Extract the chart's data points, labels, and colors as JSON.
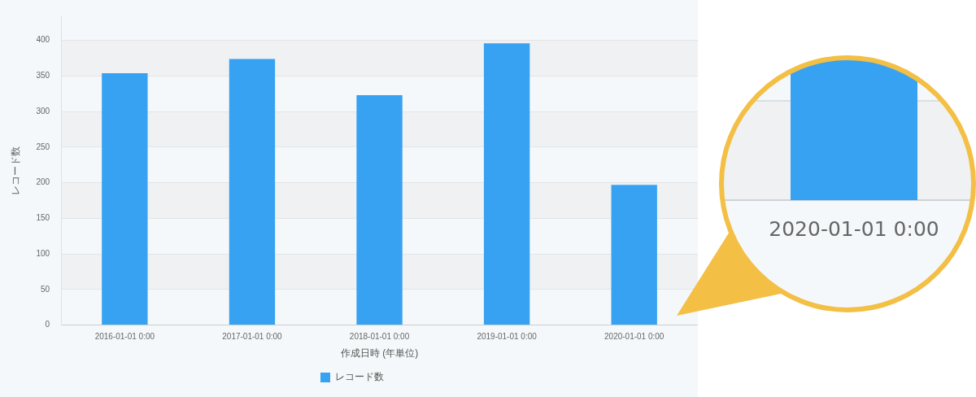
{
  "chart_data": {
    "type": "bar",
    "categories": [
      "2016-01-01 0:00",
      "2017-01-01 0:00",
      "2018-01-01 0:00",
      "2019-01-01 0:00",
      "2020-01-01 0:00"
    ],
    "series": [
      {
        "name": "レコード数",
        "color": "#38a2f2",
        "values": [
          354,
          374,
          323,
          396,
          197
        ]
      }
    ],
    "xlabel": "作成日時 (年単位)",
    "ylabel": "レコード数",
    "ylim": [
      0,
      434
    ],
    "yticks": [
      0,
      50,
      100,
      150,
      200,
      250,
      300,
      350,
      400
    ],
    "grid": "y",
    "legend": "bottom",
    "annotations": [
      "2020-01-01 0:00"
    ]
  }
}
